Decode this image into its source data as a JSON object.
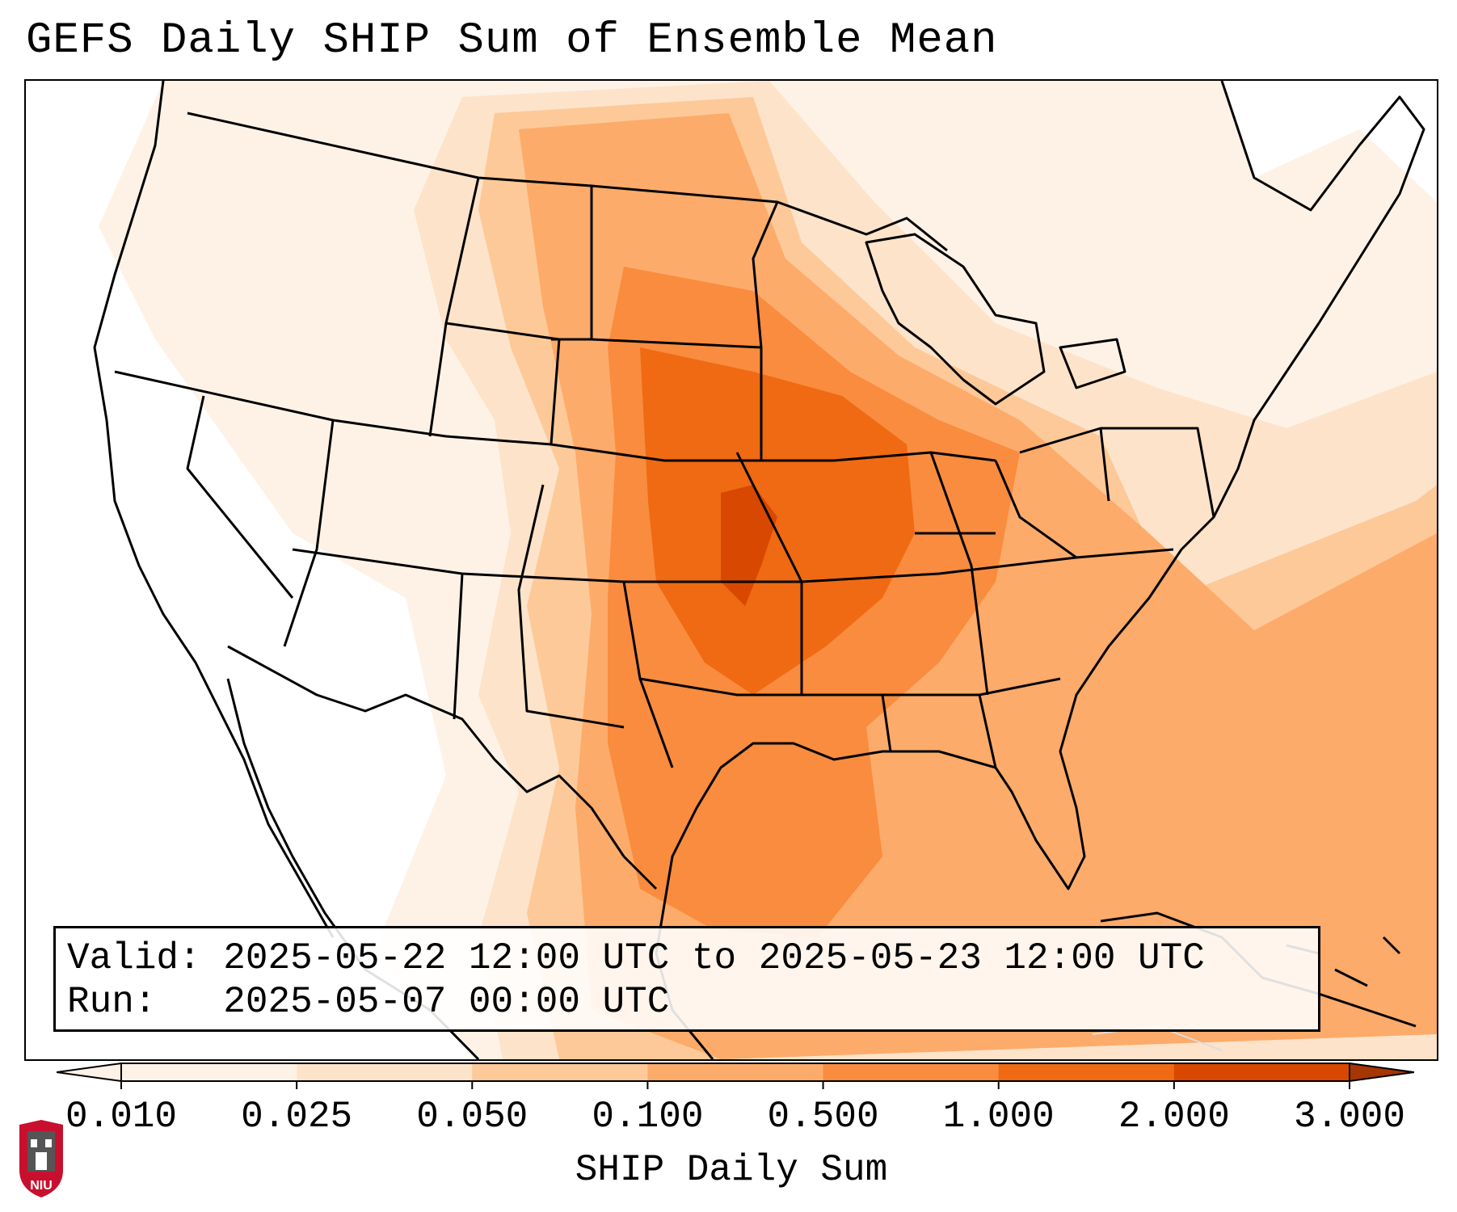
{
  "title": "GEFS Daily SHIP Sum of Ensemble Mean",
  "info": {
    "valid_label": "Valid:",
    "valid_value": "2025-05-22 12:00 UTC to 2025-05-23 12:00 UTC",
    "run_label": "Run:",
    "run_value": "2025-05-07 00:00 UTC"
  },
  "colorbar": {
    "label": "SHIP Daily Sum",
    "ticks": [
      "0.010",
      "0.025",
      "0.050",
      "0.100",
      "0.500",
      "1.000",
      "2.000",
      "3.000"
    ],
    "colors": [
      "#fef2e6",
      "#fde3c9",
      "#fdc999",
      "#fdab6a",
      "#f98c3e",
      "#ef6a13",
      "#d94801",
      "#a63603"
    ],
    "extend": "both"
  },
  "logo": {
    "text": "NIU",
    "colors": {
      "shield": "#c8102e",
      "tower": "#555555"
    }
  },
  "map_colors": {
    "land_outline": "#000000",
    "level_low": "#fef2e6",
    "level_light": "#fde3c9",
    "level_mid": "#fdc999",
    "level_high": "#fdab6a",
    "level_strong": "#f98c3e",
    "level_peak": "#ef6a13",
    "level_max": "#d94801"
  }
}
